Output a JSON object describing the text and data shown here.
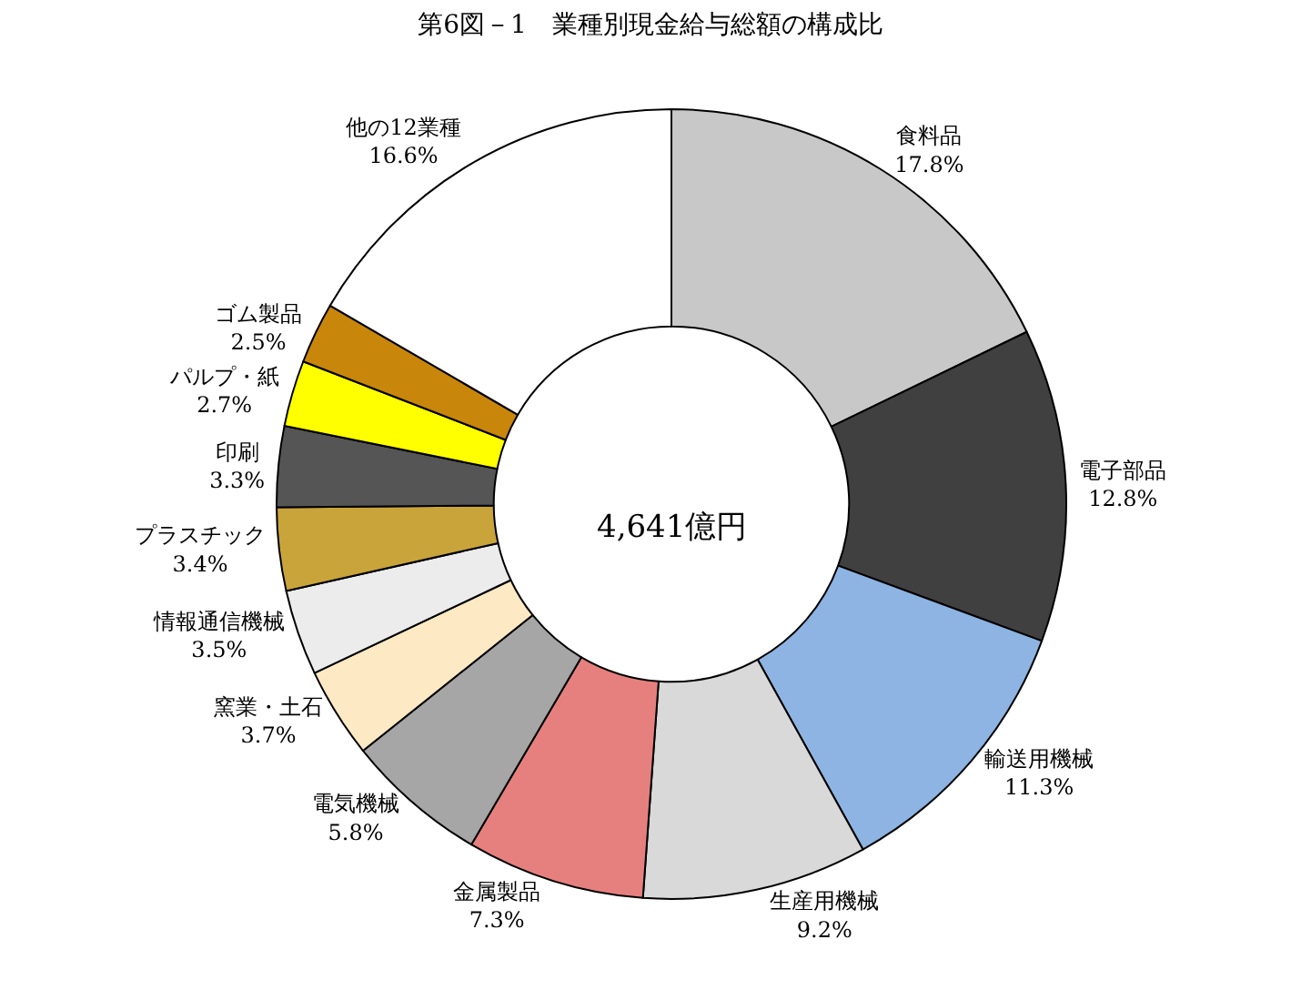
{
  "chart_data": {
    "type": "donut",
    "title": "第6図－1　業種別現金給与総額の構成比",
    "categories": [
      "食料品",
      "電子部品",
      "輸送用機械",
      "生産用機械",
      "金属製品",
      "電気機械",
      "窯業・土石",
      "情報通信機械",
      "プラスチック",
      "印刷",
      "パルプ・紙",
      "ゴム製品",
      "他の12業種"
    ],
    "values": [
      17.8,
      12.8,
      11.3,
      9.2,
      7.3,
      5.8,
      3.7,
      3.5,
      3.4,
      3.3,
      2.7,
      2.5,
      16.6
    ],
    "value_labels": [
      "17.8%",
      "12.8%",
      "11.3%",
      "9.2%",
      "7.3%",
      "5.8%",
      "3.7%",
      "3.5%",
      "3.4%",
      "3.3%",
      "2.7%",
      "2.5%",
      "16.6%"
    ],
    "colors": [
      "#c8c8c8",
      "#404040",
      "#8db4e2",
      "#d9d9d9",
      "#e6807f",
      "#a6a6a6",
      "#fde9c4",
      "#ececec",
      "#c9a43a",
      "#555555",
      "#ffff00",
      "#c8860b",
      "#ffffff"
    ],
    "annotations": [
      "4,641億円"
    ]
  }
}
